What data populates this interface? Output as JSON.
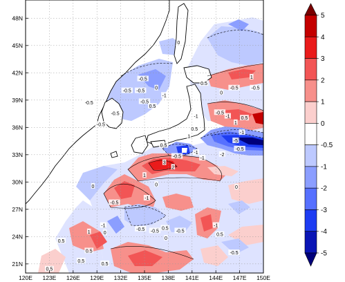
{
  "map": {
    "lon_range": [
      120,
      150
    ],
    "lat_range": [
      20,
      50
    ],
    "lon_ticks": [
      {
        "value": 120,
        "label": "120E"
      },
      {
        "value": 123,
        "label": "123E"
      },
      {
        "value": 126,
        "label": "126E"
      },
      {
        "value": 129,
        "label": "129E"
      },
      {
        "value": 132,
        "label": "132E"
      },
      {
        "value": 135,
        "label": "135E"
      },
      {
        "value": 138,
        "label": "138E"
      },
      {
        "value": 141,
        "label": "141E"
      },
      {
        "value": 144,
        "label": "144E"
      },
      {
        "value": 147,
        "label": "147E"
      },
      {
        "value": 150,
        "label": "150E"
      }
    ],
    "lat_ticks": [
      {
        "value": 21,
        "label": "21N"
      },
      {
        "value": 24,
        "label": "24N"
      },
      {
        "value": 27,
        "label": "27N"
      },
      {
        "value": 30,
        "label": "30N"
      },
      {
        "value": 33,
        "label": "33N"
      },
      {
        "value": 36,
        "label": "36N"
      },
      {
        "value": 39,
        "label": "39N"
      },
      {
        "value": 42,
        "label": "42N"
      },
      {
        "value": 45,
        "label": "45N"
      },
      {
        "value": 48,
        "label": "48N"
      }
    ],
    "grid": true,
    "contour_labels": [
      {
        "lon": 137.5,
        "lat": 32.1,
        "text": "3"
      },
      {
        "lon": 138.6,
        "lat": 31.6,
        "text": "2"
      },
      {
        "lon": 139.1,
        "lat": 32.8,
        "text": "-0.5"
      },
      {
        "lon": 142.3,
        "lat": 32.6,
        "text": "-1"
      },
      {
        "lon": 144.8,
        "lat": 33.0,
        "text": "-2"
      },
      {
        "lon": 146.5,
        "lat": 34.5,
        "text": "-5"
      },
      {
        "lon": 147.3,
        "lat": 35.4,
        "text": "-1"
      },
      {
        "lon": 146.5,
        "lat": 36.5,
        "text": "1"
      },
      {
        "lon": 144.5,
        "lat": 37.6,
        "text": "-0.5"
      },
      {
        "lon": 141.5,
        "lat": 37.2,
        "text": "-1"
      },
      {
        "lon": 141.3,
        "lat": 35.8,
        "text": "0.5"
      },
      {
        "lon": 140.6,
        "lat": 35.0,
        "text": "1"
      },
      {
        "lon": 141.5,
        "lat": 33.2,
        "text": "-1"
      },
      {
        "lon": 146.3,
        "lat": 40.3,
        "text": "-0.5"
      },
      {
        "lon": 149.0,
        "lat": 40.3,
        "text": "-0.5"
      },
      {
        "lon": 142.5,
        "lat": 40.8,
        "text": "0.5"
      },
      {
        "lon": 144.7,
        "lat": 39.8,
        "text": "0"
      },
      {
        "lon": 145.5,
        "lat": 37.2,
        "text": "-1"
      },
      {
        "lon": 147.6,
        "lat": 37.0,
        "text": "0.5"
      },
      {
        "lon": 134.5,
        "lat": 40.0,
        "text": "-0.5"
      },
      {
        "lon": 132.8,
        "lat": 40.0,
        "text": "-0.5"
      },
      {
        "lon": 136.5,
        "lat": 40.3,
        "text": "0"
      },
      {
        "lon": 137.5,
        "lat": 39.5,
        "text": "-1"
      },
      {
        "lon": 128.0,
        "lat": 38.7,
        "text": "-0.5"
      },
      {
        "lon": 131.3,
        "lat": 37.5,
        "text": "-0.5"
      },
      {
        "lon": 129.5,
        "lat": 36.3,
        "text": "-0.5"
      },
      {
        "lon": 135.0,
        "lat": 38.8,
        "text": "-0.5"
      },
      {
        "lon": 139.3,
        "lat": 45.3,
        "text": "0"
      },
      {
        "lon": 134.8,
        "lat": 41.3,
        "text": "-0.5"
      },
      {
        "lon": 136.0,
        "lat": 38.3,
        "text": "0.5"
      },
      {
        "lon": 137.4,
        "lat": 34.0,
        "text": "0.5"
      },
      {
        "lon": 135.0,
        "lat": 30.7,
        "text": "1"
      },
      {
        "lon": 136.5,
        "lat": 29.7,
        "text": "0"
      },
      {
        "lon": 135.3,
        "lat": 28.2,
        "text": "-1"
      },
      {
        "lon": 131.2,
        "lat": 27.7,
        "text": "-0.5"
      },
      {
        "lon": 128.5,
        "lat": 29.5,
        "text": "0"
      },
      {
        "lon": 129.8,
        "lat": 25.2,
        "text": "-1"
      },
      {
        "lon": 130.0,
        "lat": 24.4,
        "text": "0"
      },
      {
        "lon": 134.5,
        "lat": 24.8,
        "text": "-0.5"
      },
      {
        "lon": 136.3,
        "lat": 24.6,
        "text": "-0.5"
      },
      {
        "lon": 137.6,
        "lat": 24.9,
        "text": "0.5"
      },
      {
        "lon": 137.7,
        "lat": 23.8,
        "text": "0"
      },
      {
        "lon": 139.5,
        "lat": 24.6,
        "text": "-0.5"
      },
      {
        "lon": 144.5,
        "lat": 24.2,
        "text": "0.5"
      },
      {
        "lon": 144.0,
        "lat": 25.2,
        "text": "-1"
      },
      {
        "lon": 146.3,
        "lat": 22.2,
        "text": "-0.5"
      },
      {
        "lon": 128.0,
        "lat": 24.5,
        "text": "1"
      },
      {
        "lon": 128.0,
        "lat": 22.4,
        "text": "0.5"
      },
      {
        "lon": 124.5,
        "lat": 23.5,
        "text": "0.5"
      },
      {
        "lon": 127.0,
        "lat": 21.3,
        "text": "0.5"
      },
      {
        "lon": 123.0,
        "lat": 20.4,
        "text": "0.5"
      },
      {
        "lon": 130.0,
        "lat": 21.0,
        "text": "0.5"
      },
      {
        "lon": 146.6,
        "lat": 29.4,
        "text": "0"
      },
      {
        "lon": 148.5,
        "lat": 41.5,
        "text": "1"
      },
      {
        "lon": 147.0,
        "lat": 33.6,
        "text": "-0.5"
      }
    ]
  },
  "colorbar": {
    "levels": [
      "5",
      "4",
      "3",
      "2",
      "1",
      "0",
      "-0.5",
      "-1",
      "-2",
      "-3",
      "-4",
      "-5"
    ],
    "colors": [
      "#7a0000",
      "#c40000",
      "#ea1b1b",
      "#f25555",
      "#f7908b",
      "#fbcfcd",
      "#ffffff",
      "#bdc9ff",
      "#8b9eff",
      "#5670ff",
      "#1d3cf2",
      "#0a15b5",
      "#00007a"
    ]
  }
}
